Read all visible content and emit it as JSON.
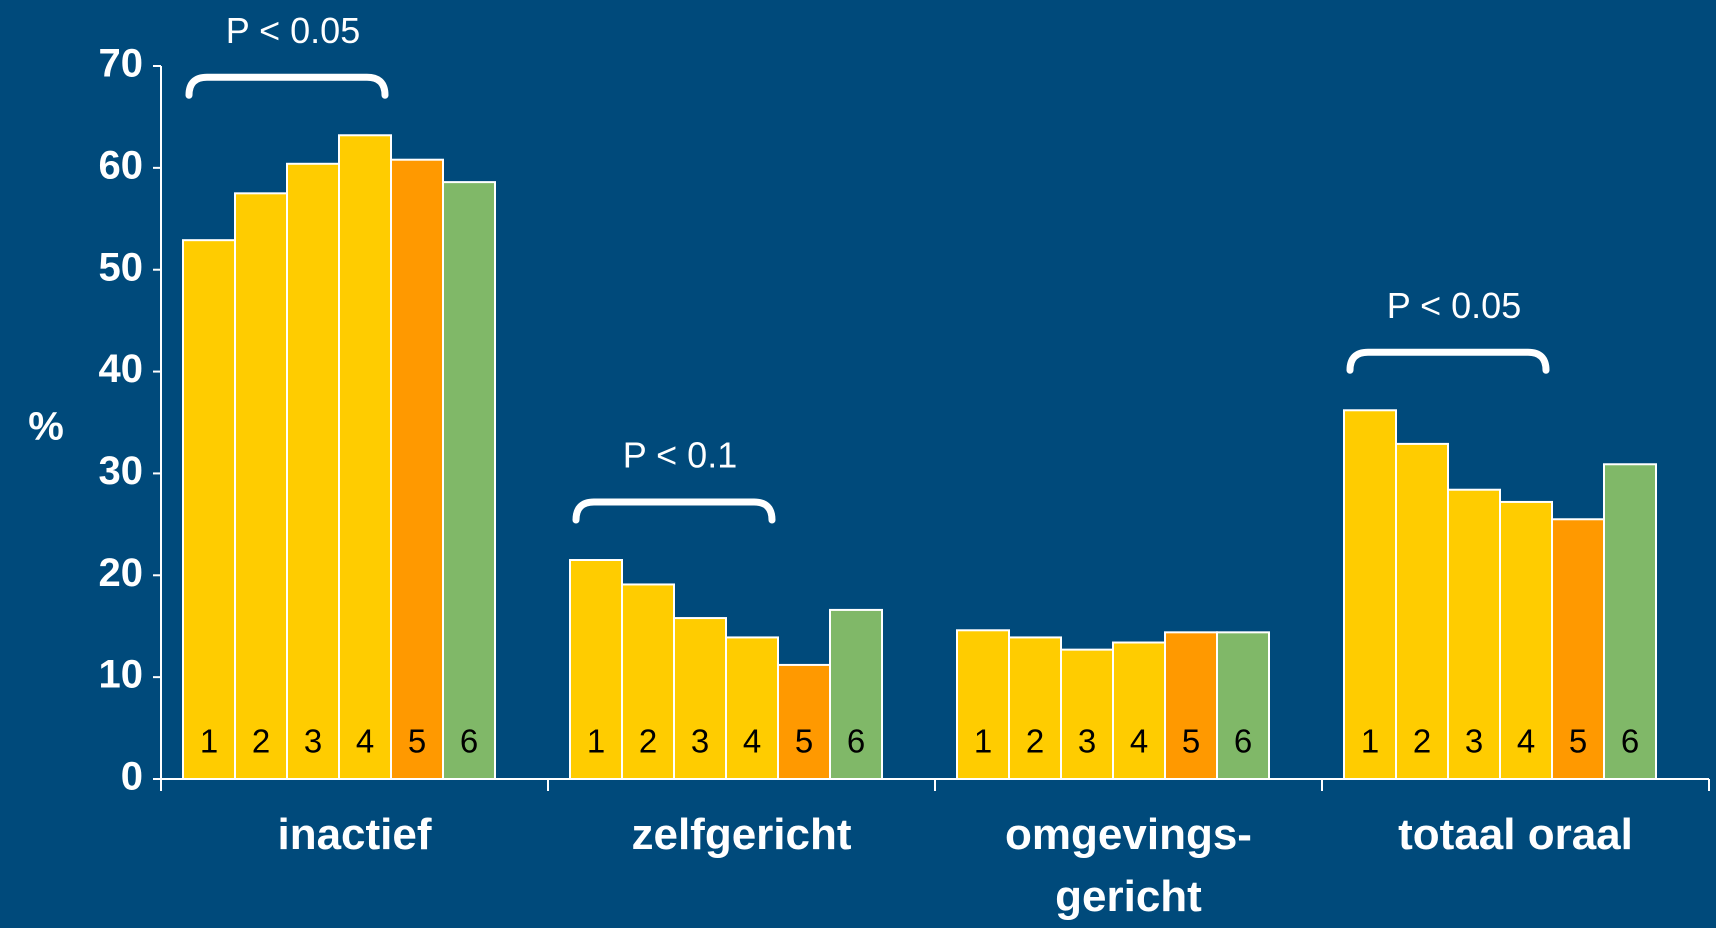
{
  "chart_data": {
    "type": "bar",
    "y_label": "%",
    "categories": [
      "inactief",
      "zelfgericht",
      "omgevings-\ngericht",
      "totaal oraal"
    ],
    "series": [
      {
        "name": "1",
        "color": "#ffcc00",
        "values": [
          52.9,
          21.5,
          14.6,
          36.2
        ]
      },
      {
        "name": "2",
        "color": "#ffcc00",
        "values": [
          57.5,
          19.1,
          13.9,
          32.9
        ]
      },
      {
        "name": "3",
        "color": "#ffcc00",
        "values": [
          60.4,
          15.8,
          12.7,
          28.4
        ]
      },
      {
        "name": "4",
        "color": "#ffcc00",
        "values": [
          63.2,
          13.9,
          13.4,
          27.2
        ]
      },
      {
        "name": "5",
        "color": "#ff9900",
        "values": [
          60.8,
          11.2,
          14.4,
          25.5
        ]
      },
      {
        "name": "6",
        "color": "#80b868",
        "values": [
          58.6,
          16.6,
          14.4,
          30.9
        ]
      }
    ],
    "annotations": [
      "P < 0.05",
      "P < 0.1",
      "P < 0.05"
    ],
    "ylim": [
      0,
      70
    ],
    "yticks": [
      0,
      10,
      20,
      30,
      40,
      50,
      60,
      70
    ],
    "grid": false
  }
}
